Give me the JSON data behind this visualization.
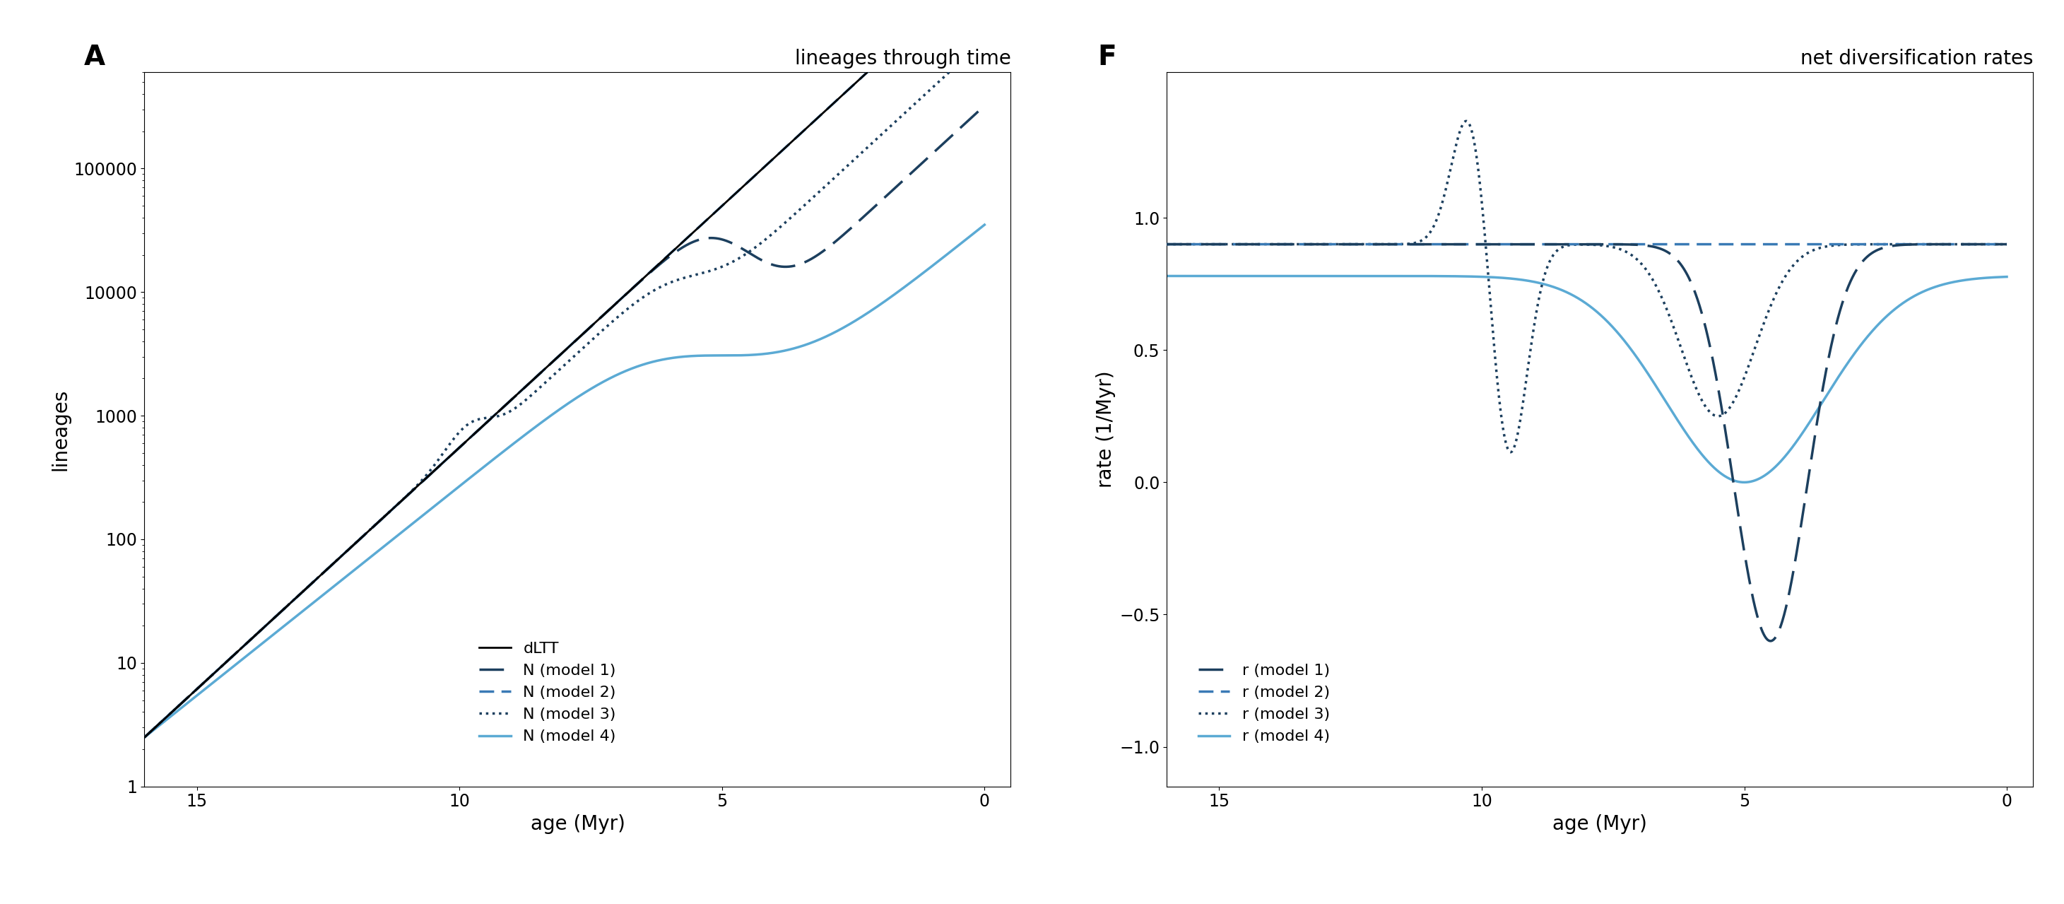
{
  "panel_A_title": "lineages through time",
  "panel_F_title": "net diversification rates",
  "panel_A_label": "A",
  "panel_F_label": "F",
  "xlabel": "age (Myr)",
  "ylabel_A": "lineages",
  "ylabel_F": "rate (1/Myr)",
  "color_dark_blue": "#1c3f5e",
  "color_med_blue": "#3a7ab5",
  "color_light_blue": "#5baad4",
  "color_black": "#000000"
}
